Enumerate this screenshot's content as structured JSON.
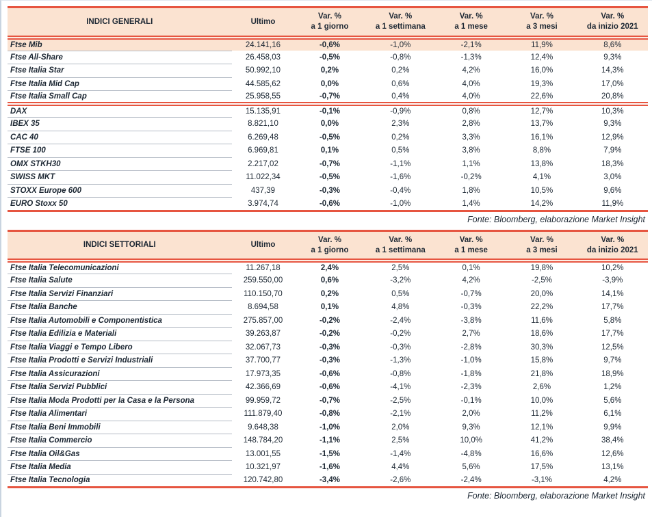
{
  "colors": {
    "accent_red": "#e65540",
    "header_bg": "#fbe3d1",
    "highlight_bg": "#fbe3d1",
    "text": "#1c2733",
    "separator": "#b3bac4"
  },
  "tables": [
    {
      "title": "INDICI GENERALI",
      "columns": [
        {
          "line1": "Ultimo",
          "line2": ""
        },
        {
          "line1": "Var. %",
          "line2": "a 1 giorno"
        },
        {
          "line1": "Var. %",
          "line2": "a 1 settimana"
        },
        {
          "line1": "Var. %",
          "line2": "a 1 mese"
        },
        {
          "line1": "Var. %",
          "line2": "a 3 mesi"
        },
        {
          "line1": "Var. %",
          "line2": "da inizio 2021"
        }
      ],
      "highlight_rows": [
        0
      ],
      "divider_after": [
        4
      ],
      "source_note": "Fonte: Bloomberg, elaborazione Market Insight",
      "rows": [
        {
          "name": "Ftse Mib",
          "ultimo": "24.141,16",
          "values": [
            "-0,6%",
            "-1,0%",
            "-2,1%",
            "11,9%",
            "8,6%"
          ]
        },
        {
          "name": "Ftse All-Share",
          "ultimo": "26.458,03",
          "values": [
            "-0,5%",
            "-0,8%",
            "-1,3%",
            "12,4%",
            "9,3%"
          ]
        },
        {
          "name": "Ftse Italia Star",
          "ultimo": "50.992,10",
          "values": [
            "0,2%",
            "0,2%",
            "4,2%",
            "16,0%",
            "14,3%"
          ]
        },
        {
          "name": "Ftse Italia Mid Cap",
          "ultimo": "44.585,62",
          "values": [
            "0,0%",
            "0,6%",
            "4,0%",
            "19,3%",
            "17,0%"
          ]
        },
        {
          "name": "Ftse Italia Small Cap",
          "ultimo": "25.958,55",
          "values": [
            "-0,7%",
            "0,4%",
            "4,0%",
            "22,6%",
            "20,8%"
          ]
        },
        {
          "name": "DAX",
          "ultimo": "15.135,91",
          "values": [
            "-0,1%",
            "-0,9%",
            "0,8%",
            "12,7%",
            "10,3%"
          ]
        },
        {
          "name": "IBEX 35",
          "ultimo": "8.821,10",
          "values": [
            "0,0%",
            "2,3%",
            "2,8%",
            "13,7%",
            "9,3%"
          ]
        },
        {
          "name": "CAC 40",
          "ultimo": "6.269,48",
          "values": [
            "-0,5%",
            "0,2%",
            "3,3%",
            "16,1%",
            "12,9%"
          ]
        },
        {
          "name": "FTSE 100",
          "ultimo": "6.969,81",
          "values": [
            "0,1%",
            "0,5%",
            "3,8%",
            "8,8%",
            "7,9%"
          ]
        },
        {
          "name": "OMX STKH30",
          "ultimo": "2.217,02",
          "values": [
            "-0,7%",
            "-1,1%",
            "1,1%",
            "13,8%",
            "18,3%"
          ]
        },
        {
          "name": "SWISS MKT",
          "ultimo": "11.022,34",
          "values": [
            "-0,5%",
            "-1,6%",
            "-0,2%",
            "4,1%",
            "3,0%"
          ]
        },
        {
          "name": "STOXX Europe 600",
          "ultimo": "437,39",
          "values": [
            "-0,3%",
            "-0,4%",
            "1,8%",
            "10,5%",
            "9,6%"
          ]
        },
        {
          "name": "EURO Stoxx 50",
          "ultimo": "3.974,74",
          "values": [
            "-0,6%",
            "-1,0%",
            "1,4%",
            "14,2%",
            "11,9%"
          ]
        }
      ]
    },
    {
      "title": "INDICI SETTORIALI",
      "columns": [
        {
          "line1": "Ultimo",
          "line2": ""
        },
        {
          "line1": "Var. %",
          "line2": "a 1 giorno"
        },
        {
          "line1": "Var. %",
          "line2": "a 1 settimana"
        },
        {
          "line1": "Var. %",
          "line2": "a 1 mese"
        },
        {
          "line1": "Var. %",
          "line2": "a 3 mesi"
        },
        {
          "line1": "Var. %",
          "line2": "da inizio 2021"
        }
      ],
      "highlight_rows": [],
      "divider_after": [],
      "source_note": "Fonte: Bloomberg, elaborazione Market Insight",
      "rows": [
        {
          "name": "Ftse Italia Telecomunicazioni",
          "ultimo": "11.267,18",
          "values": [
            "2,4%",
            "2,5%",
            "0,1%",
            "19,8%",
            "10,2%"
          ]
        },
        {
          "name": "Ftse Italia Salute",
          "ultimo": "259.550,00",
          "values": [
            "0,6%",
            "-3,2%",
            "4,2%",
            "-2,5%",
            "-3,9%"
          ]
        },
        {
          "name": "Ftse Italia Servizi Finanziari",
          "ultimo": "110.150,70",
          "values": [
            "0,2%",
            "0,5%",
            "-0,7%",
            "20,0%",
            "14,1%"
          ]
        },
        {
          "name": "Ftse Italia Banche",
          "ultimo": "8.694,58",
          "values": [
            "0,1%",
            "4,8%",
            "-0,3%",
            "22,2%",
            "17,7%"
          ]
        },
        {
          "name": "Ftse Italia Automobili e Componentistica",
          "ultimo": "275.857,00",
          "values": [
            "-0,2%",
            "-2,4%",
            "-3,8%",
            "11,6%",
            "5,8%"
          ]
        },
        {
          "name": "Ftse Italia Edilizia e Materiali",
          "ultimo": "39.263,87",
          "values": [
            "-0,2%",
            "-0,2%",
            "2,7%",
            "18,6%",
            "17,7%"
          ]
        },
        {
          "name": "Ftse Italia Viaggi e Tempo Libero",
          "ultimo": "32.067,73",
          "values": [
            "-0,3%",
            "-0,3%",
            "-2,8%",
            "30,3%",
            "12,5%"
          ]
        },
        {
          "name": "Ftse Italia Prodotti e Servizi Industriali",
          "ultimo": "37.700,77",
          "values": [
            "-0,3%",
            "-1,3%",
            "-1,0%",
            "15,8%",
            "9,7%"
          ]
        },
        {
          "name": "Ftse Italia Assicurazioni",
          "ultimo": "17.973,35",
          "values": [
            "-0,6%",
            "-0,8%",
            "-1,8%",
            "21,8%",
            "18,9%"
          ]
        },
        {
          "name": "Ftse Italia Servizi Pubblici",
          "ultimo": "42.366,69",
          "values": [
            "-0,6%",
            "-4,1%",
            "-2,3%",
            "2,6%",
            "1,2%"
          ]
        },
        {
          "name": "Ftse Italia Moda Prodotti per la Casa e la Persona",
          "ultimo": "99.959,72",
          "values": [
            "-0,7%",
            "-2,5%",
            "-0,1%",
            "10,0%",
            "5,6%"
          ]
        },
        {
          "name": "Ftse Italia Alimentari",
          "ultimo": "111.879,40",
          "values": [
            "-0,8%",
            "-2,1%",
            "2,0%",
            "11,2%",
            "6,1%"
          ]
        },
        {
          "name": "Ftse Italia Beni Immobili",
          "ultimo": "9.648,38",
          "values": [
            "-1,0%",
            "2,0%",
            "9,3%",
            "12,1%",
            "9,9%"
          ]
        },
        {
          "name": "Ftse Italia Commercio",
          "ultimo": "148.784,20",
          "values": [
            "-1,1%",
            "2,5%",
            "10,0%",
            "41,2%",
            "38,4%"
          ]
        },
        {
          "name": "Ftse Italia Oil&Gas",
          "ultimo": "13.001,55",
          "values": [
            "-1,5%",
            "-1,4%",
            "-4,8%",
            "16,6%",
            "12,6%"
          ]
        },
        {
          "name": "Ftse Italia Media",
          "ultimo": "10.321,97",
          "values": [
            "-1,6%",
            "4,4%",
            "5,6%",
            "17,5%",
            "13,1%"
          ]
        },
        {
          "name": "Ftse Italia Tecnologia",
          "ultimo": "120.742,80",
          "values": [
            "-3,4%",
            "-2,6%",
            "-2,4%",
            "-3,1%",
            "4,2%"
          ]
        }
      ]
    }
  ]
}
